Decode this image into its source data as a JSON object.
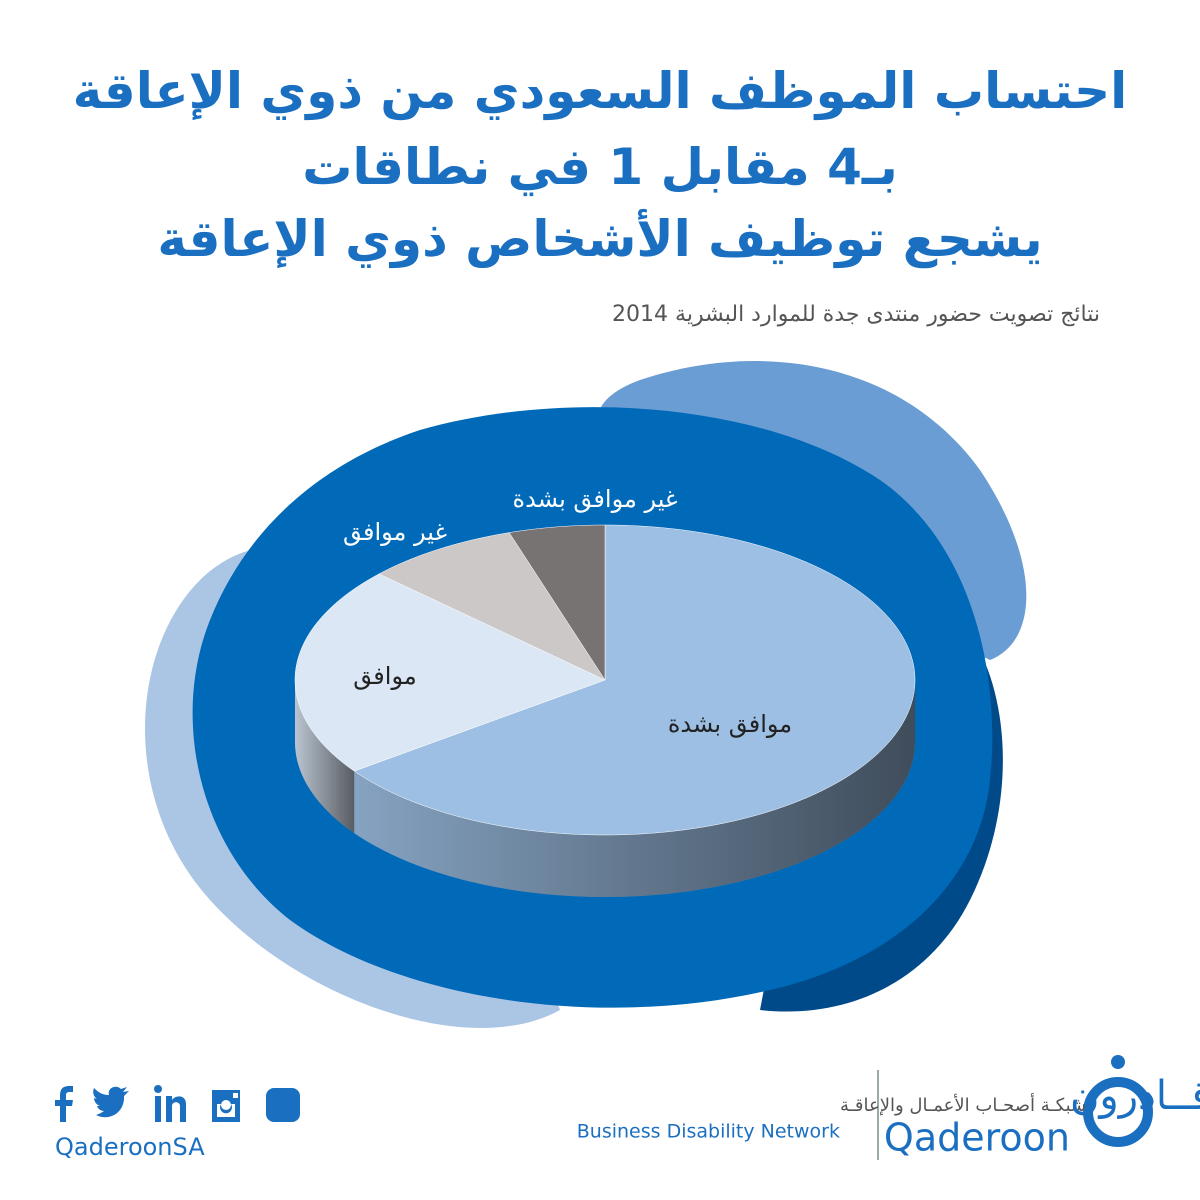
{
  "chart_data": {
    "type": "pie",
    "title": [
      "احتساب الموظف السعودي من ذوي الإعاقة",
      "بـ4 مقابل 1 في نطاقات",
      "يشجع توظيف الأشخاص ذوي الإعاقة"
    ],
    "subtitle": "نتائج تصويت حضور منتدى جدة للموارد البشرية 2014",
    "categories": [
      "موافق بشدة",
      "موافق",
      "غير موافق",
      "غير موافق بشدة"
    ],
    "values": [
      65,
      22,
      8,
      5
    ],
    "colors": [
      "#9dbfe3",
      "#dbe7f5",
      "#cdc8c8",
      "#787373"
    ]
  },
  "footer": {
    "handle": "QaderoonSA",
    "network_ar": "شبكـة أصحـاب الأعمـال والإعاقـة",
    "network_en": "Business Disability Network",
    "brand_ar": "قــادرون",
    "brand_en": "Qaderoon"
  }
}
